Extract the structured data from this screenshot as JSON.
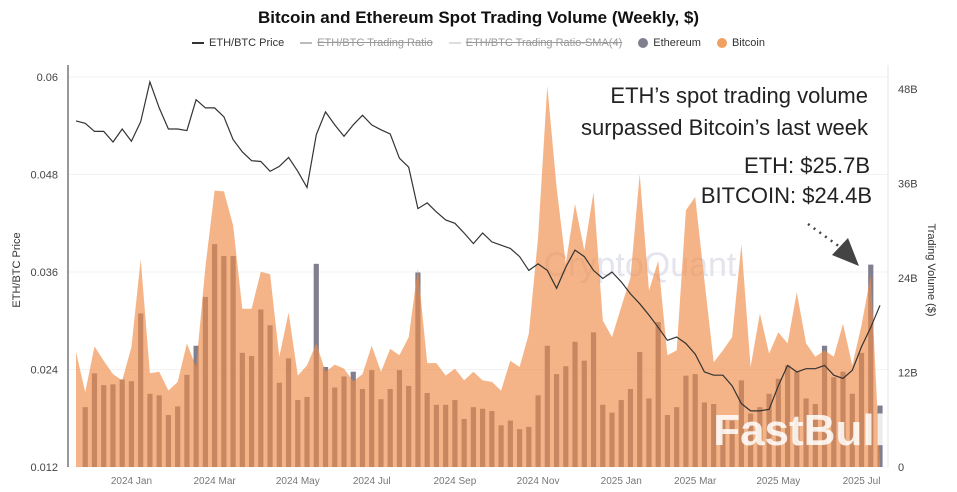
{
  "chart_data": {
    "type": "bar+area+line",
    "title": "Bitcoin and Ethereum Spot Trading Volume (Weekly, $)",
    "legend": [
      {
        "name": "ETH/BTC Price",
        "kind": "line",
        "color": "#333333",
        "active": true
      },
      {
        "name": "ETH/BTC Trading Ratio",
        "kind": "line",
        "color": "#bbbbbb",
        "active": false
      },
      {
        "name": "ETH/BTC Trading Ratio-SMA(4)",
        "kind": "line",
        "color": "#dddddd",
        "active": false
      },
      {
        "name": "Ethereum",
        "kind": "dot",
        "color": "#7f7f8f",
        "active": true
      },
      {
        "name": "Bitcoin",
        "kind": "dot",
        "color": "#f0a060",
        "active": true
      }
    ],
    "legend_position": "top",
    "ylabel_left": "ETH/BTC Price",
    "ylabel_right": "Trading Volume ($)",
    "ylim_left": [
      0.012,
      0.06
    ],
    "yticks_left": [
      "0.06",
      "0.048",
      "0.036",
      "0.024",
      "0.012"
    ],
    "ylim_right": [
      0,
      48
    ],
    "yticks_right": [
      "48B",
      "36B",
      "24B",
      "12B",
      "0"
    ],
    "grid": true,
    "x_ticks": [
      {
        "label": "2024 Jan",
        "date": "2024-01-01"
      },
      {
        "label": "2024 Mar",
        "date": "2024-03-04"
      },
      {
        "label": "2024 May",
        "date": "2024-05-06"
      },
      {
        "label": "2024 Jul",
        "date": "2024-07-01"
      },
      {
        "label": "2024 Sep",
        "date": "2024-09-02"
      },
      {
        "label": "2024 Nov",
        "date": "2024-11-04"
      },
      {
        "label": "2025 Jan",
        "date": "2025-01-06"
      },
      {
        "label": "2025 Mar",
        "date": "2025-03-03"
      },
      {
        "label": "2025 May",
        "date": "2025-05-05"
      },
      {
        "label": "2025 Jul",
        "date": "2025-07-07"
      }
    ],
    "x": [
      "2023-11-20",
      "2023-11-27",
      "2023-12-04",
      "2023-12-11",
      "2023-12-18",
      "2023-12-25",
      "2024-01-01",
      "2024-01-08",
      "2024-01-15",
      "2024-01-22",
      "2024-01-29",
      "2024-02-05",
      "2024-02-12",
      "2024-02-19",
      "2024-02-26",
      "2024-03-04",
      "2024-03-11",
      "2024-03-18",
      "2024-03-25",
      "2024-04-01",
      "2024-04-08",
      "2024-04-15",
      "2024-04-22",
      "2024-04-29",
      "2024-05-06",
      "2024-05-13",
      "2024-05-20",
      "2024-05-27",
      "2024-06-03",
      "2024-06-10",
      "2024-06-17",
      "2024-06-24",
      "2024-07-01",
      "2024-07-08",
      "2024-07-15",
      "2024-07-22",
      "2024-07-29",
      "2024-08-05",
      "2024-08-12",
      "2024-08-19",
      "2024-08-26",
      "2024-09-02",
      "2024-09-09",
      "2024-09-16",
      "2024-09-23",
      "2024-09-30",
      "2024-10-07",
      "2024-10-14",
      "2024-10-21",
      "2024-10-28",
      "2024-11-04",
      "2024-11-11",
      "2024-11-18",
      "2024-11-25",
      "2024-12-02",
      "2024-12-09",
      "2024-12-16",
      "2024-12-23",
      "2024-12-30",
      "2025-01-06",
      "2025-01-13",
      "2025-01-20",
      "2025-01-27",
      "2025-02-03",
      "2025-02-10",
      "2025-02-17",
      "2025-02-24",
      "2025-03-03",
      "2025-03-10",
      "2025-03-17",
      "2025-03-24",
      "2025-03-31",
      "2025-04-07",
      "2025-04-14",
      "2025-04-21",
      "2025-04-28",
      "2025-05-05",
      "2025-05-12",
      "2025-05-19",
      "2025-05-26",
      "2025-06-02",
      "2025-06-09",
      "2025-06-16",
      "2025-06-23",
      "2025-06-30",
      "2025-07-07",
      "2025-07-14",
      "2025-07-21"
    ],
    "series": [
      {
        "name": "Ethereum",
        "type": "bar",
        "axis": "right",
        "unit": "B USD",
        "values": [
          null,
          7.6,
          11.9,
          10.4,
          10.5,
          11.1,
          10.9,
          19.5,
          9.3,
          9.1,
          6.6,
          7.7,
          11.7,
          15.4,
          21.6,
          28.3,
          26.8,
          26.8,
          14.5,
          14.1,
          20.0,
          18.0,
          10.7,
          13.8,
          8.5,
          8.9,
          25.8,
          12.7,
          10.1,
          11.5,
          12.1,
          9.9,
          12.3,
          8.6,
          9.9,
          12.3,
          10.3,
          24.7,
          9.4,
          7.9,
          7.9,
          8.5,
          6.1,
          7.6,
          7.4,
          7.1,
          5.3,
          5.9,
          4.8,
          5.1,
          9.1,
          15.4,
          11.8,
          12.8,
          15.9,
          13.5,
          17.1,
          7.9,
          6.9,
          8.5,
          9.9,
          14.6,
          8.7,
          18.4,
          6.6,
          7.6,
          11.6,
          11.8,
          8.2,
          8.0,
          6.0,
          5.9,
          11.0,
          6.8,
          7.6,
          9.3,
          11.2,
          12.9,
          12.1,
          8.7,
          8.0,
          15.4,
          11.4,
          12.1,
          9.3,
          14.5,
          25.7,
          7.8
        ]
      },
      {
        "name": "Bitcoin",
        "type": "area",
        "axis": "right",
        "unit": "B USD",
        "values": [
          14.6,
          9.5,
          15.3,
          13.5,
          11.8,
          11.0,
          15.2,
          26.4,
          11.9,
          12.1,
          9.7,
          10.8,
          15.7,
          12.7,
          25.4,
          35.1,
          35.0,
          30.7,
          20.1,
          20.1,
          24.8,
          24.5,
          14.0,
          19.6,
          11.6,
          12.9,
          15.7,
          12.1,
          13.0,
          12.5,
          10.9,
          11.8,
          15.4,
          12.1,
          15.0,
          14.2,
          16.5,
          25.2,
          13.2,
          13.2,
          11.6,
          12.5,
          11.0,
          12.1,
          11.0,
          10.8,
          9.7,
          13.5,
          12.7,
          16.9,
          29.2,
          48.4,
          35.5,
          25.8,
          33.4,
          27.5,
          34.9,
          18.6,
          16.5,
          20.3,
          24.1,
          37.2,
          22.4,
          26.2,
          14.2,
          14.8,
          32.6,
          34.3,
          23.7,
          13.3,
          14.8,
          16.5,
          28.3,
          12.7,
          19.5,
          14.4,
          17.1,
          15.7,
          22.2,
          15.7,
          14.0,
          14.8,
          14.0,
          18.2,
          12.9,
          18.0,
          24.4,
          0.4
        ]
      },
      {
        "name": "ETH/BTC Price",
        "type": "line",
        "axis": "left",
        "values": [
          0.0546,
          0.0543,
          0.0533,
          0.0533,
          0.052,
          0.0536,
          0.0521,
          0.0545,
          0.0594,
          0.0562,
          0.0536,
          0.0536,
          0.0534,
          0.0572,
          0.0562,
          0.0562,
          0.0551,
          0.0523,
          0.0508,
          0.0497,
          0.0496,
          0.0484,
          0.049,
          0.0501,
          0.0484,
          0.0464,
          0.0529,
          0.0557,
          0.0541,
          0.0527,
          0.0541,
          0.0553,
          0.0541,
          0.0535,
          0.053,
          0.05,
          0.0489,
          0.0438,
          0.0445,
          0.0434,
          0.0424,
          0.042,
          0.0408,
          0.0395,
          0.0408,
          0.0397,
          0.0393,
          0.0389,
          0.0379,
          0.0362,
          0.037,
          0.0362,
          0.034,
          0.0366,
          0.0387,
          0.0379,
          0.0362,
          0.0352,
          0.036,
          0.0348,
          0.0333,
          0.0321,
          0.0307,
          0.0292,
          0.0276,
          0.028,
          0.0272,
          0.0259,
          0.0237,
          0.0233,
          0.0233,
          0.022,
          0.0198,
          0.0189,
          0.0189,
          0.0191,
          0.022,
          0.0245,
          0.0237,
          0.0241,
          0.0241,
          0.0245,
          0.0233,
          0.0229,
          0.0239,
          0.0268,
          0.0292,
          0.0319
        ]
      }
    ],
    "annotations": {
      "line1": "ETH’s spot trading volume",
      "line2": "surpassed Bitcoin’s last week",
      "eth": "ETH: $25.7B",
      "btc": "BITCOIN: $24.4B"
    },
    "watermarks": {
      "center": "CryptoQuant",
      "corner": "FastBull"
    }
  }
}
